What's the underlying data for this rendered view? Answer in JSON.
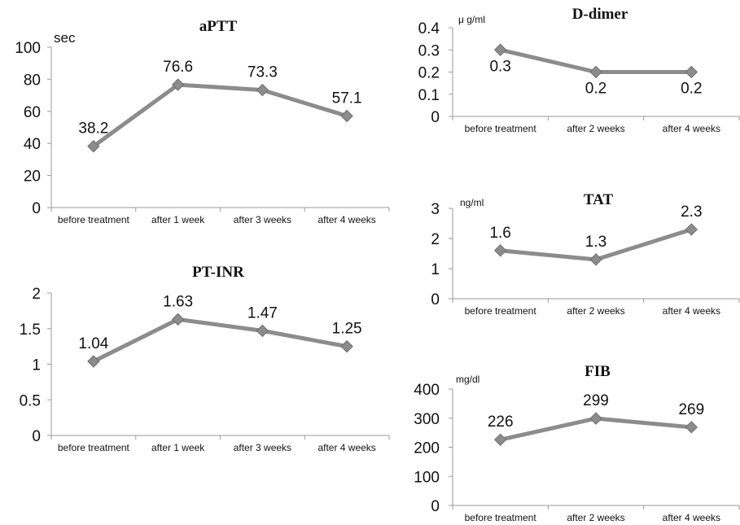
{
  "chart_data": [
    {
      "type": "line",
      "title": "aPTT",
      "unit": "sec",
      "categories": [
        "before treatment",
        "after 1 week",
        "after 3 weeks",
        "after 4 weeks"
      ],
      "values": [
        38.2,
        76.6,
        73.3,
        57.1
      ],
      "value_labels": [
        "38.2",
        "76.6",
        "73.3",
        "57.1"
      ],
      "yticks": [
        "0",
        "20",
        "40",
        "60",
        "80",
        "100"
      ],
      "ylim": [
        0,
        100
      ],
      "grid": false,
      "line_color": "#8c8c8c"
    },
    {
      "type": "line",
      "title": "PT-INR",
      "unit": "",
      "categories": [
        "before treatment",
        "after 1 week",
        "after 3 weeks",
        "after 4 weeks"
      ],
      "values": [
        1.04,
        1.63,
        1.47,
        1.25
      ],
      "value_labels": [
        "1.04",
        "1.63",
        "1.47",
        "1.25"
      ],
      "yticks": [
        "0",
        "0.5",
        "1",
        "1.5",
        "2"
      ],
      "ylim": [
        0,
        2
      ],
      "grid": false,
      "line_color": "#8c8c8c"
    },
    {
      "type": "line",
      "title": "D-dimer",
      "unit": "μ g/ml",
      "categories": [
        "before treatment",
        "after 2 weeks",
        "after 4 weeks"
      ],
      "values": [
        0.3,
        0.2,
        0.2
      ],
      "value_labels": [
        "0.3",
        "0.2",
        "0.2"
      ],
      "yticks": [
        "0",
        "0.1",
        "0.2",
        "0.3",
        "0.4"
      ],
      "ylim": [
        0,
        0.4
      ],
      "grid": false,
      "line_color": "#8c8c8c"
    },
    {
      "type": "line",
      "title": "TAT",
      "unit": "ng/ml",
      "categories": [
        "before treatment",
        "after 2 weeks",
        "after 4 weeks"
      ],
      "values": [
        1.6,
        1.3,
        2.3
      ],
      "value_labels": [
        "1.6",
        "1.3",
        "2.3"
      ],
      "yticks": [
        "0",
        "1",
        "2",
        "3"
      ],
      "ylim": [
        0,
        3
      ],
      "grid": false,
      "line_color": "#8c8c8c"
    },
    {
      "type": "line",
      "title": "FIB",
      "unit": "mg/dl",
      "categories": [
        "before treatment",
        "after 2 weeks",
        "after 4 weeks"
      ],
      "values": [
        226,
        299,
        269
      ],
      "value_labels": [
        "226",
        "299",
        "269"
      ],
      "yticks": [
        "0",
        "100",
        "200",
        "300",
        "400"
      ],
      "ylim": [
        0,
        400
      ],
      "grid": false,
      "line_color": "#8c8c8c"
    }
  ]
}
